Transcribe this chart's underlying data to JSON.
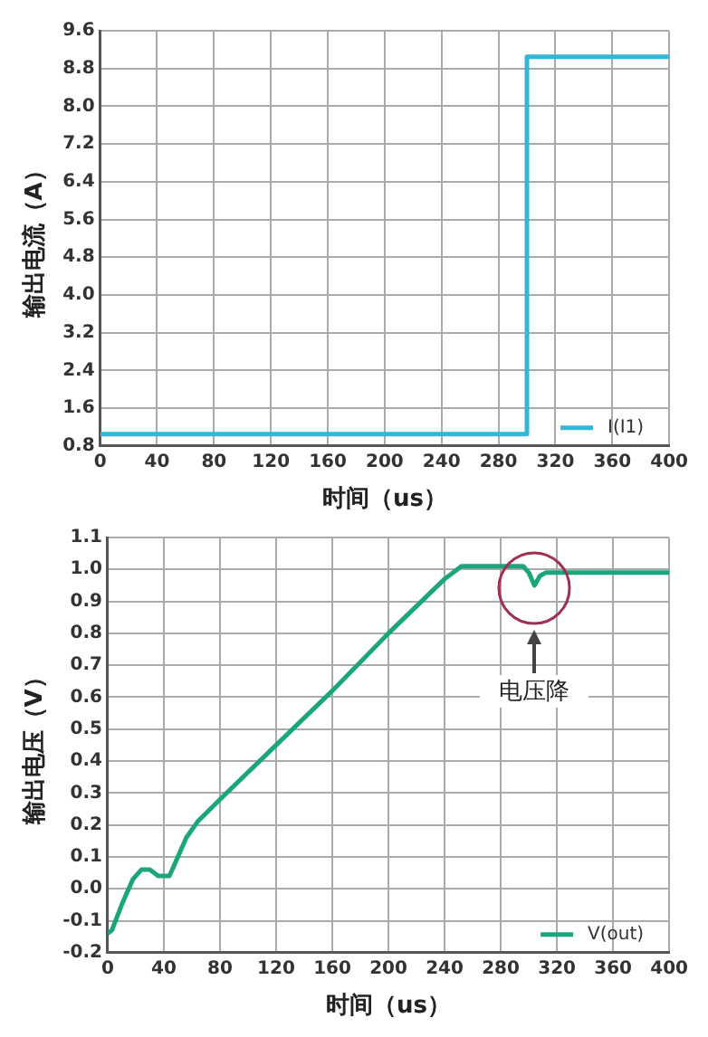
{
  "chart_data": [
    {
      "type": "step",
      "xlabel": "时间（us）",
      "ylabel": "输出电流（A）",
      "x": [
        0,
        300,
        400
      ],
      "series": [
        {
          "name": "I(I1)",
          "color": "#35b6d6",
          "values": [
            1.05,
            9.05,
            9.05
          ]
        }
      ],
      "xlim": [
        0,
        400
      ],
      "xticks": [
        0,
        40,
        80,
        120,
        160,
        200,
        240,
        280,
        320,
        360,
        400
      ],
      "ylim": [
        0.8,
        9.6
      ],
      "yticks": [
        0.8,
        1.6,
        2.4,
        3.2,
        {
          "value": 4,
          "label": "4.0"
        },
        4.8,
        5.6,
        6.4,
        7.2,
        {
          "value": 8,
          "label": "8.0"
        },
        8.8,
        9.6
      ],
      "grid": true,
      "legend": "bottom right",
      "marker": "none",
      "line_style": "solid"
    },
    {
      "type": "line",
      "xlabel": "时间（us）",
      "ylabel": "输出电压（V）",
      "x": [
        0,
        3,
        10,
        18,
        24,
        30,
        36,
        44,
        50,
        56,
        64,
        80,
        120,
        160,
        200,
        240,
        252,
        296,
        300,
        304,
        308,
        312,
        400
      ],
      "series": [
        {
          "name": "V(out)",
          "color": "#1ba57c",
          "values": [
            -0.14,
            -0.13,
            -0.05,
            0.03,
            0.06,
            0.06,
            0.04,
            0.04,
            0.1,
            0.16,
            0.21,
            0.28,
            0.45,
            0.62,
            0.8,
            0.97,
            1.01,
            1.01,
            0.99,
            0.95,
            0.98,
            0.99,
            0.99
          ]
        }
      ],
      "xlim": [
        0,
        400
      ],
      "xticks": [
        0,
        40,
        80,
        120,
        160,
        200,
        240,
        280,
        320,
        360,
        400
      ],
      "ylim": [
        -0.2,
        1.1
      ],
      "yticks": [
        -0.2,
        -0.1,
        {
          "value": 0,
          "label": "0.0"
        },
        0.1,
        0.2,
        0.3,
        0.4,
        0.5,
        0.6,
        0.7,
        0.8,
        0.9,
        {
          "value": 1,
          "label": "1.0"
        },
        1.1
      ],
      "grid": true,
      "legend": "bottom right",
      "marker": "none",
      "line_style": "solid",
      "annotations": [
        "电压降"
      ]
    }
  ]
}
